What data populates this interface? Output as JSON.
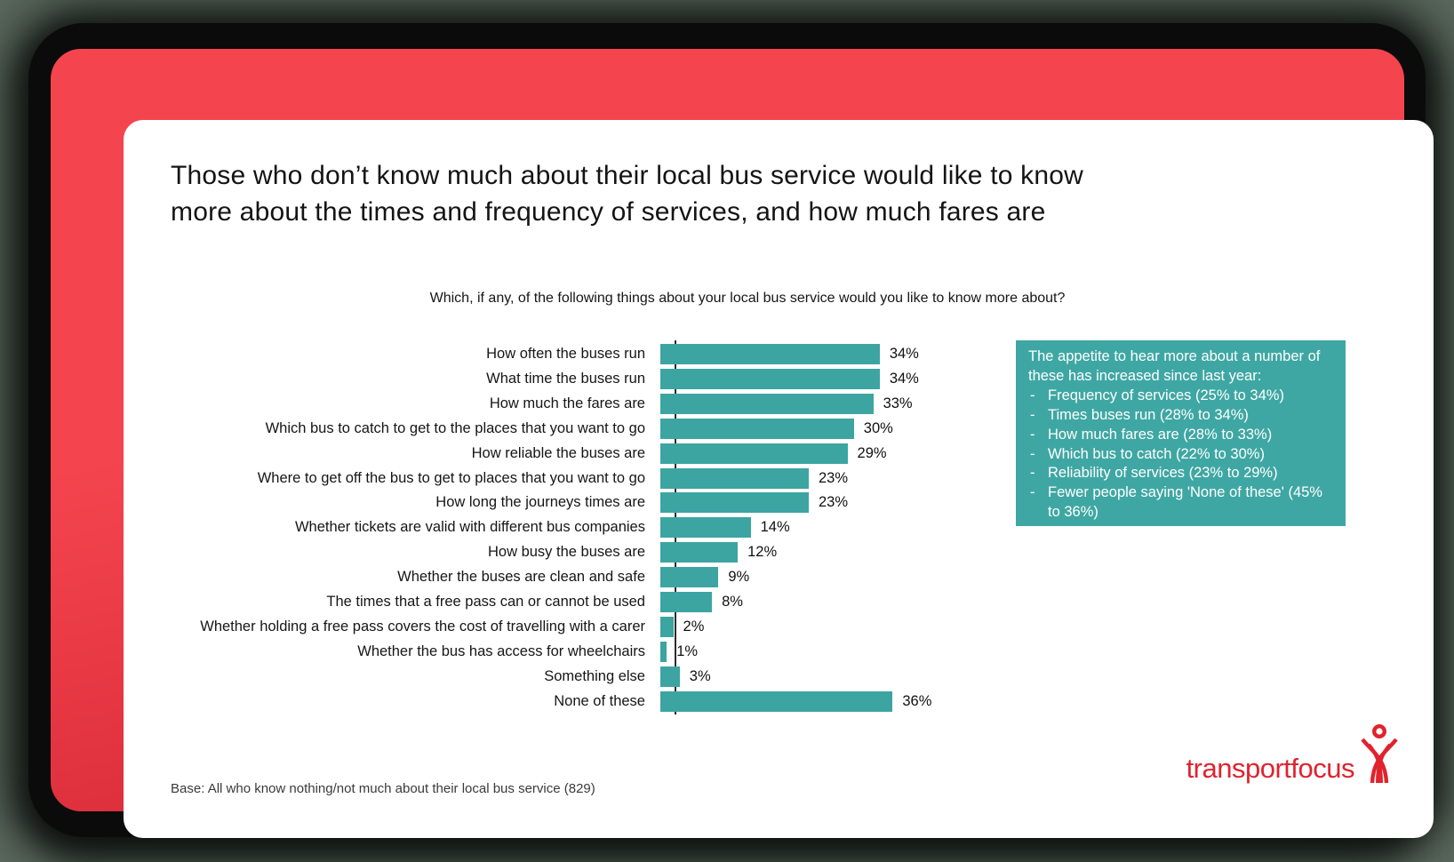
{
  "frame": {
    "red_top": "#f4454f",
    "red_bottom": "#ce1f2f",
    "shadow_color": "#0b0b0b",
    "slide_background": "#ffffff"
  },
  "slide": {
    "title": "Those who don’t know much about their local bus service would like to know\nmore about the times and frequency of services, and how much fares are",
    "subtitle": "Which, if any, of the following things about your local bus service would you like to know more about?",
    "base_note": "Base: All who know nothing/not much about their local bus service (829)",
    "logo": {
      "text": "transportfocus",
      "color": "#e0232e",
      "icon": "person-figure-icon"
    }
  },
  "chart_data": {
    "type": "bar",
    "orientation": "horizontal",
    "title": "Which, if any, of the following things about your local bus service would you like to know more about?",
    "categories": [
      "How often the buses run",
      "What time the buses run",
      "How much the fares are",
      "Which bus to catch to get to the places that you want to go",
      "How reliable the buses are",
      "Where to get off the bus to get to places that you want to go",
      "How long the journeys times are",
      "Whether tickets are valid with different bus companies",
      "How busy the buses are",
      "Whether the buses are clean and safe",
      "The times that a free pass can or cannot be used",
      "Whether holding a free pass covers the cost of travelling with a carer",
      "Whether the bus has access for wheelchairs",
      "Something else",
      "None of these"
    ],
    "values": [
      34,
      34,
      33,
      30,
      29,
      23,
      23,
      14,
      12,
      9,
      8,
      2,
      1,
      3,
      36
    ],
    "unit": "%",
    "xlim": [
      0,
      38
    ],
    "bar_color": "#3ca5a2",
    "axis_color": "#2b2b2b",
    "grid": false,
    "data_labels_shown": true
  },
  "callout": {
    "intro": "The appetite to hear more about a number of these has increased since last year:",
    "bullets": [
      "Frequency of services (25% to 34%)",
      "Times buses run (28% to 34%)",
      "How much fares are (28% to 33%)",
      "Which bus to catch  (22% to 30%)",
      "Reliability of services (23% to 29%)",
      "Fewer people saying 'None of these' (45% to 36%)"
    ],
    "bg_color": "#3fa7a3",
    "text_color": "#ffffff"
  }
}
